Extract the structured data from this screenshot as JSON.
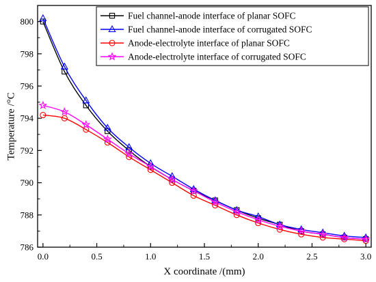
{
  "chart_data": {
    "type": "line",
    "xlabel": "X coordinate /(mm)",
    "ylabel": "Temperature /°C",
    "xlim": [
      -0.05,
      3.05
    ],
    "ylim": [
      786,
      801
    ],
    "xticks": [
      0.0,
      0.5,
      1.0,
      1.5,
      2.0,
      2.5,
      3.0
    ],
    "xtick_labels": [
      "0.0",
      "0.5",
      "1.0",
      "1.5",
      "2.0",
      "2.5",
      "3.0"
    ],
    "yticks": [
      786,
      788,
      790,
      792,
      794,
      796,
      798,
      800
    ],
    "ytick_labels": [
      "786",
      "788",
      "790",
      "792",
      "794",
      "796",
      "798",
      "800"
    ],
    "grid": false,
    "legend_position": "top-right",
    "series": [
      {
        "name": "Fuel channel-anode interface of planar SOFC",
        "color": "#000000",
        "marker": "square",
        "x": [
          0.0,
          0.2,
          0.4,
          0.6,
          0.8,
          1.0,
          1.2,
          1.4,
          1.6,
          1.8,
          2.0,
          2.2,
          2.4,
          2.6,
          2.8,
          3.0
        ],
        "y": [
          800.0,
          796.9,
          794.8,
          793.2,
          792.0,
          791.0,
          790.2,
          789.5,
          788.9,
          788.3,
          787.8,
          787.4,
          787.0,
          786.8,
          786.6,
          786.5
        ]
      },
      {
        "name": "Fuel channel-anode interface of corrugated SOFC",
        "color": "#0000ff",
        "marker": "triangle",
        "x": [
          0.0,
          0.2,
          0.4,
          0.6,
          0.8,
          1.0,
          1.2,
          1.4,
          1.6,
          1.8,
          2.0,
          2.2,
          2.4,
          2.6,
          2.8,
          3.0
        ],
        "y": [
          800.2,
          797.2,
          795.1,
          793.4,
          792.2,
          791.2,
          790.4,
          789.6,
          788.9,
          788.3,
          787.9,
          787.4,
          787.1,
          786.9,
          786.7,
          786.6
        ]
      },
      {
        "name": "Anode-electrolyte interface of planar SOFC",
        "color": "#ff0000",
        "marker": "circle",
        "x": [
          0.0,
          0.2,
          0.4,
          0.6,
          0.8,
          1.0,
          1.2,
          1.4,
          1.6,
          1.8,
          2.0,
          2.2,
          2.4,
          2.6,
          2.8,
          3.0
        ],
        "y": [
          794.2,
          794.0,
          793.3,
          792.5,
          791.6,
          790.8,
          790.0,
          789.2,
          788.6,
          788.0,
          787.5,
          787.1,
          786.8,
          786.6,
          786.5,
          786.4
        ]
      },
      {
        "name": "Anode-electrolyte interface of corrugated SOFC",
        "color": "#ff00ff",
        "marker": "star",
        "x": [
          0.0,
          0.2,
          0.4,
          0.6,
          0.8,
          1.0,
          1.2,
          1.4,
          1.6,
          1.8,
          2.0,
          2.2,
          2.4,
          2.6,
          2.8,
          3.0
        ],
        "y": [
          794.8,
          794.4,
          793.6,
          792.7,
          791.8,
          791.0,
          790.2,
          789.5,
          788.8,
          788.2,
          787.7,
          787.3,
          787.0,
          786.8,
          786.6,
          786.5
        ]
      }
    ]
  }
}
